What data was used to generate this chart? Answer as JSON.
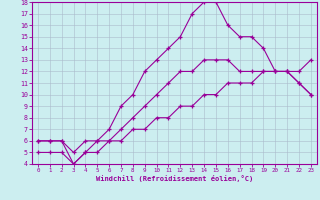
{
  "xlabel": "Windchill (Refroidissement éolien,°C)",
  "line_color": "#990099",
  "bg_color": "#cceef0",
  "grid_color": "#aabbcc",
  "xlim": [
    -0.5,
    23.5
  ],
  "ylim": [
    4,
    18
  ],
  "xticks": [
    0,
    1,
    2,
    3,
    4,
    5,
    6,
    7,
    8,
    9,
    10,
    11,
    12,
    13,
    14,
    15,
    16,
    17,
    18,
    19,
    20,
    21,
    22,
    23
  ],
  "yticks": [
    4,
    5,
    6,
    7,
    8,
    9,
    10,
    11,
    12,
    13,
    14,
    15,
    16,
    17,
    18
  ],
  "line1_x": [
    0,
    1,
    2,
    3,
    4,
    5,
    6,
    7,
    8,
    9,
    10,
    11,
    12,
    13,
    14,
    15,
    16,
    17,
    18,
    19,
    20,
    21,
    22,
    23
  ],
  "line1_y": [
    6,
    6,
    6,
    5,
    6,
    6,
    6,
    7,
    8,
    9,
    10,
    11,
    12,
    12,
    13,
    13,
    13,
    12,
    12,
    12,
    12,
    12,
    11,
    10
  ],
  "line2_x": [
    0,
    1,
    2,
    3,
    4,
    5,
    6,
    7,
    8,
    9,
    10,
    11,
    12,
    13,
    14,
    15,
    16,
    17,
    18,
    19,
    20,
    21,
    22,
    23
  ],
  "line2_y": [
    6,
    6,
    6,
    4,
    5,
    6,
    7,
    9,
    10,
    12,
    13,
    14,
    15,
    17,
    18,
    18,
    16,
    15,
    15,
    14,
    12,
    12,
    11,
    10
  ],
  "line3_x": [
    0,
    1,
    2,
    3,
    4,
    5,
    6,
    7,
    8,
    9,
    10,
    11,
    12,
    13,
    14,
    15,
    16,
    17,
    18,
    19,
    20,
    21,
    22,
    23
  ],
  "line3_y": [
    5,
    5,
    5,
    4,
    5,
    5,
    6,
    6,
    7,
    7,
    8,
    8,
    9,
    9,
    10,
    10,
    11,
    11,
    11,
    12,
    12,
    12,
    12,
    13
  ]
}
